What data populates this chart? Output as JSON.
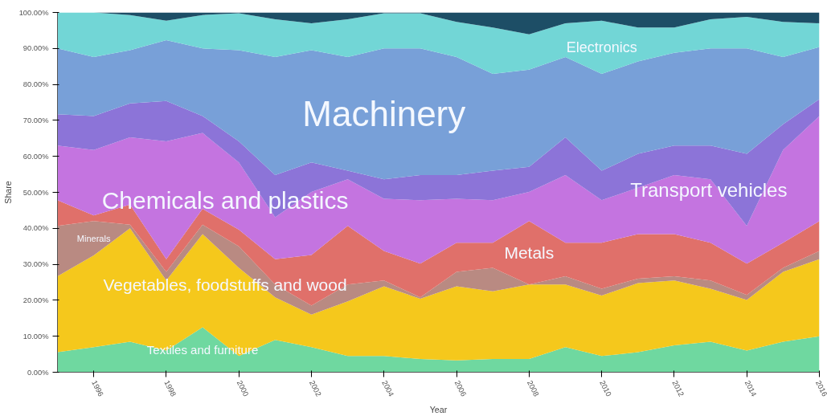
{
  "chart_data": {
    "type": "area",
    "stacked": true,
    "xlabel": "Year",
    "ylabel": "Share",
    "x": [
      1995,
      1996,
      1997,
      1998,
      1999,
      2000,
      2001,
      2002,
      2003,
      2004,
      2005,
      2006,
      2007,
      2008,
      2009,
      2010,
      2011,
      2012,
      2013,
      2014,
      2015,
      2016
    ],
    "xlim": [
      1995,
      2016
    ],
    "xticks": [
      1996,
      1998,
      2000,
      2002,
      2004,
      2006,
      2008,
      2010,
      2012,
      2014,
      2016
    ],
    "ylim": [
      0,
      100
    ],
    "yticks": [
      {
        "value": 0,
        "label": "0.00%"
      },
      {
        "value": 10,
        "label": "10.00%"
      },
      {
        "value": 20,
        "label": "20.00%"
      },
      {
        "value": 30,
        "label": "30.00%"
      },
      {
        "value": 40,
        "label": "40.00%"
      },
      {
        "value": 50,
        "label": "50.00%"
      },
      {
        "value": 60,
        "label": "60.00%"
      },
      {
        "value": 70,
        "label": "70.00%"
      },
      {
        "value": 80,
        "label": "80.00%"
      },
      {
        "value": 90,
        "label": "90.00%"
      },
      {
        "value": 100,
        "label": "100.00%"
      }
    ],
    "grid": false,
    "series": [
      {
        "name": "Textiles and furniture",
        "color": "#6fd8a0",
        "values": [
          5.6,
          7,
          8.5,
          6,
          12.5,
          4.5,
          9,
          7,
          4.5,
          4.5,
          3.7,
          3.3,
          3.7,
          3.7,
          7,
          4.5,
          5.6,
          7.5,
          8.5,
          6,
          8.5,
          10
        ]
      },
      {
        "name": "Vegetables, foodstuffs and wood",
        "color": "#f5c81c",
        "values": [
          21.1,
          25.5,
          31.5,
          19.5,
          25.9,
          24.5,
          11.8,
          9,
          15.2,
          19.4,
          16.7,
          20.6,
          18.8,
          20.7,
          17.4,
          16.8,
          19.2,
          18,
          14.7,
          14.1,
          19.4,
          21.4
        ]
      },
      {
        "name": "Minerals",
        "color": "#b98a82",
        "values": [
          14,
          9.5,
          1,
          2.4,
          2.6,
          6,
          3.6,
          2.5,
          4.7,
          1.6,
          0.4,
          4,
          6.5,
          0,
          2.3,
          1.9,
          1.2,
          1.2,
          2.3,
          1.4,
          1.1,
          2.3
        ]
      },
      {
        "name": "Metals",
        "color": "#e0706a",
        "values": [
          7.1,
          1.6,
          5.6,
          3.5,
          4.4,
          4.6,
          7,
          14.1,
          16.3,
          8.2,
          9.4,
          8.1,
          7,
          17.6,
          9.3,
          12.8,
          12.4,
          11.7,
          10.5,
          8.7,
          7,
          8.3
        ]
      },
      {
        "name": "Chemicals and plastics",
        "color": "#c474e0",
        "values": [
          15.2,
          18.2,
          18.7,
          32.8,
          21.1,
          18.7,
          11.7,
          17.5,
          12.9,
          14.5,
          17.6,
          12.2,
          11.8,
          8.1,
          18.8,
          11.8,
          12.9,
          16.4,
          17.6,
          10.5,
          25.8,
          29.2
        ]
      },
      {
        "name": "Transport vehicles",
        "color": "#8c74d8",
        "values": [
          8.7,
          9.4,
          9.4,
          11.2,
          4.7,
          5.9,
          11.7,
          8.2,
          2.4,
          5.4,
          7,
          6.6,
          8.2,
          7,
          10.5,
          8.2,
          9.4,
          8.2,
          9.4,
          20,
          7.1,
          4.7
        ]
      },
      {
        "name": "Machinery",
        "color": "#78a0d8",
        "values": [
          18.3,
          16.4,
          14.8,
          16.9,
          18.8,
          25.3,
          32.8,
          31.2,
          31.6,
          36.4,
          35.2,
          32.8,
          26.9,
          27,
          22.3,
          26.9,
          25.7,
          25.8,
          27,
          29.3,
          18.7,
          14.5
        ]
      },
      {
        "name": "Electronics",
        "color": "#72d6d6",
        "values": [
          10,
          12.4,
          9.8,
          5.4,
          9.3,
          10.3,
          10.5,
          7.5,
          10.5,
          9.8,
          9.8,
          9.8,
          12.9,
          9.8,
          9.4,
          14.8,
          9.4,
          7,
          8.1,
          8.8,
          9.8,
          6.6
        ]
      },
      {
        "color": "#1d4e66",
        "values": [
          0,
          0,
          0.7,
          2.3,
          0.7,
          0.2,
          1.9,
          3,
          1.9,
          0.2,
          0.2,
          2.6,
          4.2,
          6.1,
          3,
          2.3,
          4.2,
          4.2,
          1.9,
          1.2,
          2.6,
          3
        ]
      }
    ]
  }
}
